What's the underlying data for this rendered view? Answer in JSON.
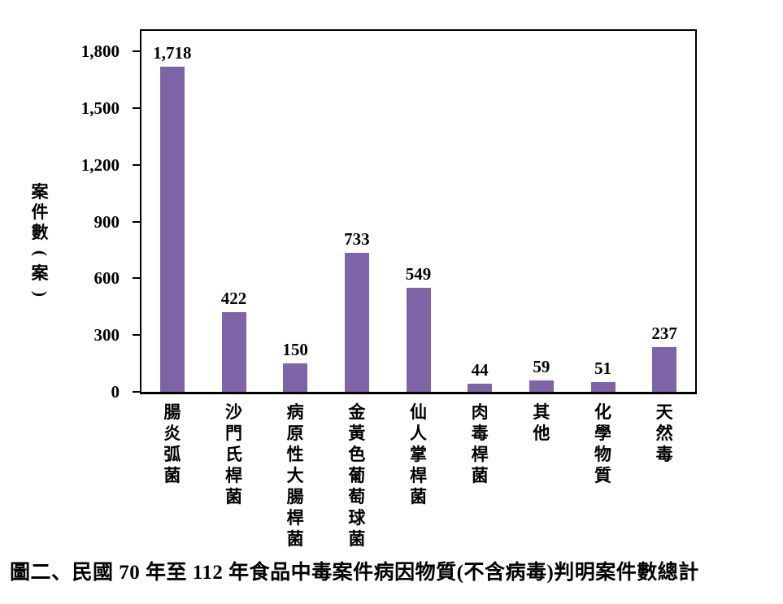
{
  "figure": {
    "caption": "圖二、民國 70 年至 112 年食品中毒案件病因物質(不含病毒)判明案件數總計"
  },
  "chart_data": {
    "type": "bar",
    "title": "",
    "xlabel": "",
    "ylabel": "案件數(案)",
    "ylabel_chars": [
      "案",
      "件",
      "數",
      "(",
      "案",
      ")"
    ],
    "categories": [
      "腸炎弧菌",
      "沙門氏桿菌",
      "病原性大腸桿菌",
      "金黃色葡萄球菌",
      "仙人掌桿菌",
      "肉毒桿菌",
      "其他",
      "化學物質",
      "天然毒"
    ],
    "values": [
      1718,
      422,
      150,
      733,
      549,
      44,
      59,
      51,
      237
    ],
    "value_labels": [
      "1,718",
      "422",
      "150",
      "733",
      "549",
      "44",
      "59",
      "51",
      "237"
    ],
    "yticks": [
      0,
      300,
      600,
      900,
      1200,
      1500,
      1800
    ],
    "ytick_labels": [
      "0",
      "300",
      "600",
      "900",
      "1,200",
      "1,500",
      "1,800"
    ],
    "ylim": [
      0,
      1916
    ],
    "grid": false,
    "legend": null,
    "bar_color": "#7E64A6",
    "axis_color": "#000000",
    "text_color": "#000000",
    "background_color": "#FFFFFF"
  }
}
